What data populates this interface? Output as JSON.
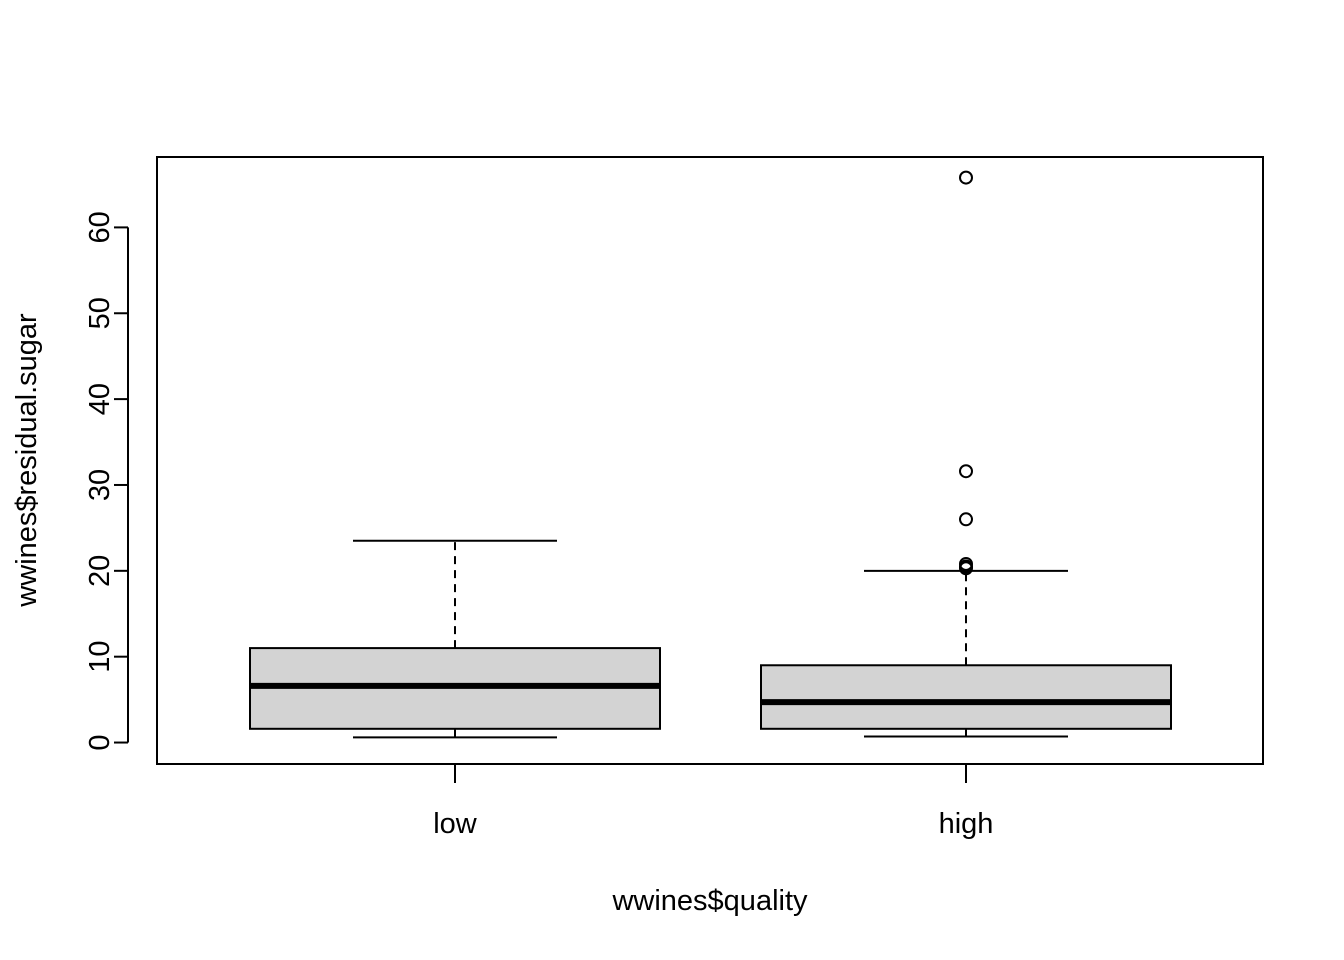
{
  "chart_data": {
    "type": "boxplot",
    "title": "",
    "xlabel": "wwines$quality",
    "ylabel": "wwines$residual.sugar",
    "categories": [
      "low",
      "high"
    ],
    "ylim": [
      -2.5,
      68.2
    ],
    "yticks": [
      0,
      10,
      20,
      30,
      40,
      50,
      60
    ],
    "ytick_labels": [
      "0",
      "10",
      "20",
      "30",
      "40",
      "50",
      "60"
    ],
    "grid": false,
    "legend": "none",
    "box_fill": "#d3d3d3",
    "boxes": [
      {
        "category": "low",
        "whisker_low": 0.6,
        "q1": 1.6,
        "median": 6.6,
        "q3": 11.0,
        "whisker_high": 23.5,
        "outliers": []
      },
      {
        "category": "high",
        "whisker_low": 0.7,
        "q1": 1.6,
        "median": 4.7,
        "q3": 9.0,
        "whisker_high": 20.0,
        "outliers": [
          20.3,
          20.5,
          20.8,
          26.0,
          31.6,
          65.8
        ]
      }
    ]
  }
}
